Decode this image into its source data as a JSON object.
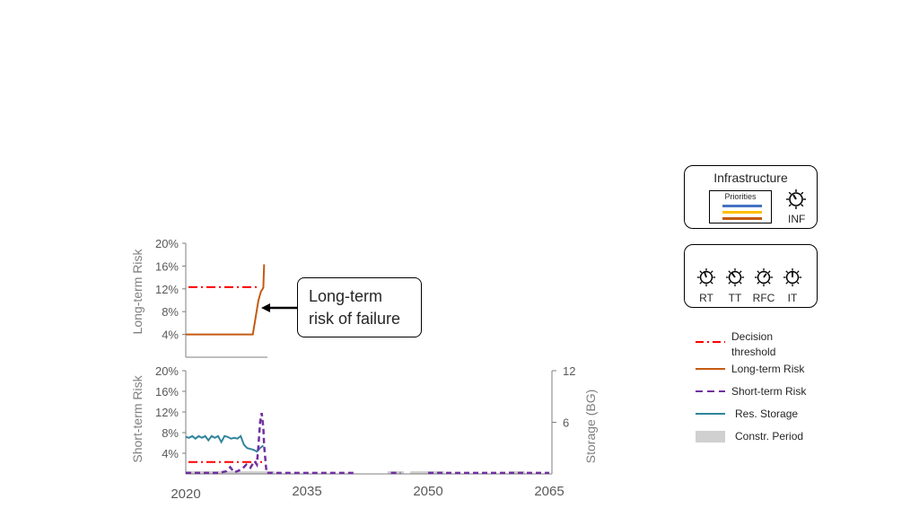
{
  "chart_data": {
    "type": "line",
    "x_ticks": [
      "2020",
      "2035",
      "2050",
      "2065"
    ],
    "panels": [
      {
        "name": "long-term",
        "ylabel": "Long-term Risk",
        "yticks": [
          "20%",
          "16%",
          "12%",
          "8%",
          "4%"
        ],
        "ylim": [
          0,
          20
        ],
        "decision_threshold": 12.3,
        "series": [
          {
            "name": "Long-term Risk",
            "color": "#c55a11",
            "x": [
              2020,
              2027.5,
              2028.3,
              2029.0,
              2029.3,
              2029.6,
              2029.7
            ],
            "values": [
              4,
              4,
              4,
              10,
              11.5,
              12.2,
              16.3
            ]
          }
        ]
      },
      {
        "name": "short-term",
        "ylabel": "Short-term Risk",
        "yticks": [
          "20%",
          "16%",
          "12%",
          "8%",
          "4%"
        ],
        "ylim": [
          0,
          20
        ],
        "decision_threshold": 2.3,
        "right_axis": {
          "label": "Storage (BG)",
          "ticks": [
            "12",
            "6"
          ],
          "ylim": [
            0,
            12
          ]
        },
        "series": [
          {
            "name": "Short-term Risk",
            "color": "#7030a0",
            "x": [
              2020,
              2024,
              2025,
              2025.5,
              2026,
              2026.5,
              2027,
              2027.5,
              2028,
              2028.5,
              2028.8,
              2029,
              2029.2,
              2029.4,
              2029.6,
              2029.7,
              2030,
              2035,
              2041,
              2044.6,
              2045.4,
              2046.6,
              2047.8,
              2050,
              2055,
              2060,
              2065
            ],
            "values": [
              0.2,
              0.2,
              0.5,
              1.3,
              0.3,
              0.6,
              1.0,
              1.8,
              1.2,
              2.5,
              1.8,
              5.5,
              10,
              11.8,
              9,
              5.5,
              0.2,
              0.2,
              0.2,
              null,
              0.2,
              0.2,
              null,
              0.2,
              0.2,
              0.2,
              0.2
            ]
          },
          {
            "name": "Res. Storage",
            "color": "#31859c",
            "x": [
              2020,
              2020.4,
              2020.8,
              2021.2,
              2021.6,
              2022,
              2022.4,
              2022.8,
              2023.2,
              2023.6,
              2024,
              2024.4,
              2024.8,
              2025.2,
              2025.6,
              2026,
              2026.4,
              2026.8,
              2027.2,
              2027.6,
              2028,
              2028.4,
              2028.8,
              2029.2,
              2029.6
            ],
            "values": [
              4.3,
              4.2,
              4.4,
              4.1,
              4.4,
              4.2,
              4.4,
              3.9,
              4.4,
              4.2,
              4.4,
              3.7,
              4.4,
              4.3,
              4.1,
              4.2,
              4.1,
              4.4,
              3.4,
              3.0,
              2.9,
              2.8,
              2.6,
              3.0,
              3.3
            ]
          }
        ],
        "construction_periods": [
          [
            2020,
            2031
          ],
          [
            2045,
            2047
          ],
          [
            2047.8,
            2052
          ],
          [
            2060,
            2062
          ]
        ]
      }
    ],
    "legend": [
      {
        "label": "Decision threshold",
        "color": "#ff0000",
        "style": "dash-dot"
      },
      {
        "label": "Long-term Risk",
        "color": "#c55a11",
        "style": "solid"
      },
      {
        "label": "Short-term Risk",
        "color": "#7030a0",
        "style": "dashed"
      },
      {
        "label": "Res. Storage",
        "color": "#31859c",
        "style": "solid"
      },
      {
        "label": "Constr. Period",
        "color": "#d0d0d0",
        "style": "box"
      }
    ]
  },
  "callout": {
    "text": "Long-term risk of failure"
  },
  "infrastructure_panel": {
    "title": "Infrastructure",
    "priorities_label": "Priorities",
    "priority_colors": [
      "#4472c4",
      "#ffc000",
      "#c55a11"
    ],
    "knob_label": "INF",
    "knob_icon": "dial-knob-icon"
  },
  "knobs_panel": {
    "knobs": [
      "RT",
      "TT",
      "RFC",
      "IT"
    ],
    "knob_icon": "dial-knob-icon"
  }
}
